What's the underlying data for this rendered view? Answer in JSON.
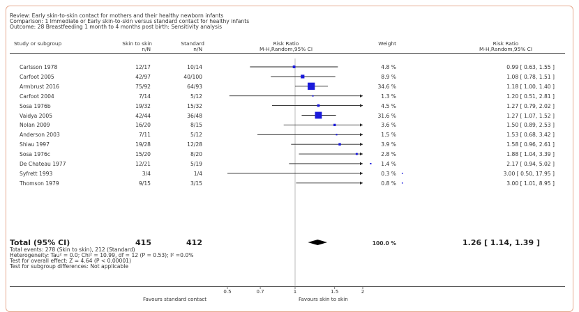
{
  "header": {
    "review": "Review:  Early skin-to-skin contact for mothers and their healthy newborn infants",
    "comparison": "Comparison:  1 Immediate or Early skin-to-skin versus standard contact for healthy infants",
    "outcome": "Outcome:  28 Breastfeeding 1 month to 4 months post birth: Sensitivity analysis"
  },
  "columns": {
    "study": "Study or subgroup",
    "exp": "Skin to skin",
    "exp_sub": "n/N",
    "ctrl": "Standard",
    "ctrl_sub": "n/N",
    "rr_plot": "Risk Ratio",
    "rr_plot_sub": "M-H,Random,95% CI",
    "weight": "Weight",
    "rr_text": "Risk Ratio",
    "rr_text_sub": "M-H,Random,95% CI"
  },
  "studies": [
    {
      "study": "Carlsson 1978",
      "exp": "12/17",
      "ctrl": "10/14",
      "weight": "4.8 %",
      "rr_text": "0.99 [ 0.63, 1.55 ]"
    },
    {
      "study": "Carfoot 2005",
      "exp": "42/97",
      "ctrl": "40/100",
      "weight": "8.9 %",
      "rr_text": "1.08 [ 0.78, 1.51 ]"
    },
    {
      "study": "Armbrust 2016",
      "exp": "75/92",
      "ctrl": "64/93",
      "weight": "34.6 %",
      "rr_text": "1.18 [ 1.00, 1.40 ]"
    },
    {
      "study": "Carfoot 2004",
      "exp": "7/14",
      "ctrl": "5/12",
      "weight": "1.3 %",
      "rr_text": "1.20 [ 0.51, 2.81 ]"
    },
    {
      "study": "Sosa 1976b",
      "exp": "19/32",
      "ctrl": "15/32",
      "weight": "4.5 %",
      "rr_text": "1.27 [ 0.79, 2.02 ]"
    },
    {
      "study": "Vaidya 2005",
      "exp": "42/44",
      "ctrl": "36/48",
      "weight": "31.6 %",
      "rr_text": "1.27 [ 1.07, 1.52 ]"
    },
    {
      "study": "Nolan 2009",
      "exp": "16/20",
      "ctrl": "8/15",
      "weight": "3.6 %",
      "rr_text": "1.50 [ 0.89, 2.53 ]"
    },
    {
      "study": "Anderson 2003",
      "exp": "7/11",
      "ctrl": "5/12",
      "weight": "1.5 %",
      "rr_text": "1.53 [ 0.68, 3.42 ]"
    },
    {
      "study": "Shiau 1997",
      "exp": "19/28",
      "ctrl": "12/28",
      "weight": "3.9 %",
      "rr_text": "1.58 [ 0.96, 2.61 ]"
    },
    {
      "study": "Sosa 1976c",
      "exp": "15/20",
      "ctrl": "8/20",
      "weight": "2.8 %",
      "rr_text": "1.88 [ 1.04, 3.39 ]"
    },
    {
      "study": "De Chateau 1977",
      "exp": "12/21",
      "ctrl": "5/19",
      "weight": "1.4 %",
      "rr_text": "2.17 [ 0.94, 5.02 ]"
    },
    {
      "study": "Syfrett 1993",
      "exp": "3/4",
      "ctrl": "1/4",
      "weight": "0.3 %",
      "rr_text": "3.00 [ 0.50, 17.95 ]"
    },
    {
      "study": "Thomson 1979",
      "exp": "9/15",
      "ctrl": "3/15",
      "weight": "0.8 %",
      "rr_text": "3.00 [ 1.01, 8.95 ]"
    }
  ],
  "total": {
    "label": "Total (95% CI)",
    "exp": "415",
    "ctrl": "412",
    "weight": "100.0 %",
    "rr_text": "1.26 [ 1.14, 1.39 ]",
    "events": "Total events: 278 (Skin to skin), 212 (Standard)",
    "heterogeneity": "Heterogeneity: Tau² = 0.0; Chi² = 10.99, df = 12 (P = 0.53); I² =0.0%",
    "overall": "Test for overall effect: Z = 4.64 (P < 0.00001)",
    "subgroup": "Test for subgroup differences: Not applicable"
  },
  "axis": {
    "favours_left": "Favours standard contact",
    "favours_right": "Favours skin to skin"
  },
  "chart_data": {
    "type": "forest",
    "scale": "log",
    "xlim": [
      0.5,
      2
    ],
    "ticks": [
      0.5,
      0.7,
      1,
      1.5,
      2
    ],
    "tick_labels": [
      "0.5",
      "0.7",
      "1",
      "1.5",
      "2"
    ],
    "points": [
      {
        "rr": 0.99,
        "lo": 0.63,
        "hi": 1.55,
        "weight": 4.8
      },
      {
        "rr": 1.08,
        "lo": 0.78,
        "hi": 1.51,
        "weight": 8.9
      },
      {
        "rr": 1.18,
        "lo": 1.0,
        "hi": 1.4,
        "weight": 34.6
      },
      {
        "rr": 1.2,
        "lo": 0.51,
        "hi": 2.81,
        "weight": 1.3
      },
      {
        "rr": 1.27,
        "lo": 0.79,
        "hi": 2.02,
        "weight": 4.5
      },
      {
        "rr": 1.27,
        "lo": 1.07,
        "hi": 1.52,
        "weight": 31.6
      },
      {
        "rr": 1.5,
        "lo": 0.89,
        "hi": 2.53,
        "weight": 3.6
      },
      {
        "rr": 1.53,
        "lo": 0.68,
        "hi": 3.42,
        "weight": 1.5
      },
      {
        "rr": 1.58,
        "lo": 0.96,
        "hi": 2.61,
        "weight": 3.9
      },
      {
        "rr": 1.88,
        "lo": 1.04,
        "hi": 3.39,
        "weight": 2.8
      },
      {
        "rr": 2.17,
        "lo": 0.94,
        "hi": 5.02,
        "weight": 1.4
      },
      {
        "rr": 3.0,
        "lo": 0.5,
        "hi": 17.95,
        "weight": 0.3
      },
      {
        "rr": 3.0,
        "lo": 1.01,
        "hi": 8.95,
        "weight": 0.8
      }
    ],
    "pooled": {
      "rr": 1.26,
      "lo": 1.14,
      "hi": 1.39
    },
    "colors": {
      "marker": "#1a1adb",
      "line": "#222222",
      "diamond": "#000000"
    }
  }
}
